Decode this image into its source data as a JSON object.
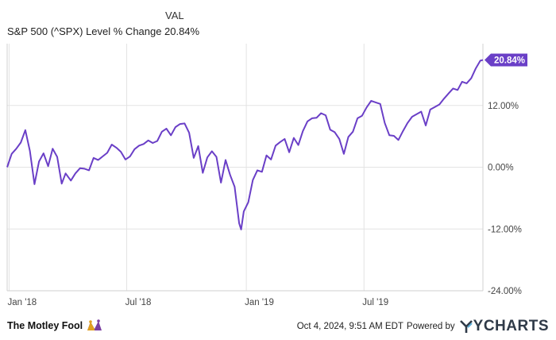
{
  "legend": {
    "column_header": "VAL",
    "series_label": "S&P 500 (^SPX) Level % Change",
    "series_value": "20.84%"
  },
  "footer": {
    "brand": "The Motley Fool",
    "timestamp": "Oct 4, 2024, 9:51 AM EDT",
    "powered_by": "Powered by",
    "provider": "YCHARTS"
  },
  "colors": {
    "line": "#6a3fc7",
    "grid": "#e3e3e3",
    "badge": "#6a3fc7"
  },
  "icons": {
    "brand_logo": "jester-hat-icon",
    "provider_logo": "ycharts-y-icon"
  },
  "chart_data": {
    "type": "line",
    "title": "",
    "xlabel": "",
    "ylabel": "",
    "x_ticks": [
      "Jan '18",
      "Jul '18",
      "Jan '19",
      "Jul '19"
    ],
    "y_ticks": [
      "12.00%",
      "0.00%",
      "-12.00%",
      "-24.00%"
    ],
    "y_tick_values": [
      12,
      0,
      -12,
      -24
    ],
    "ylim": [
      -24,
      24
    ],
    "xlim": [
      "2017-12-29",
      "2019-12-31"
    ],
    "grid": true,
    "last_value_label": "20.84%",
    "series": [
      {
        "x": [
          "2017-12-29",
          "2018-01-05",
          "2018-01-12",
          "2018-01-19",
          "2018-01-26",
          "2018-02-02",
          "2018-02-09",
          "2018-02-16",
          "2018-02-23",
          "2018-03-02",
          "2018-03-09",
          "2018-03-16",
          "2018-03-23",
          "2018-03-29",
          "2018-04-06",
          "2018-04-13",
          "2018-04-20",
          "2018-04-27",
          "2018-05-04",
          "2018-05-11",
          "2018-05-18",
          "2018-05-25",
          "2018-06-01",
          "2018-06-08",
          "2018-06-15",
          "2018-06-22",
          "2018-06-29",
          "2018-07-06",
          "2018-07-13",
          "2018-07-20",
          "2018-07-27",
          "2018-08-03",
          "2018-08-10",
          "2018-08-17",
          "2018-08-24",
          "2018-08-31",
          "2018-09-07",
          "2018-09-14",
          "2018-09-21",
          "2018-09-28",
          "2018-10-05",
          "2018-10-12",
          "2018-10-19",
          "2018-10-26",
          "2018-11-02",
          "2018-11-09",
          "2018-11-16",
          "2018-11-23",
          "2018-11-30",
          "2018-12-07",
          "2018-12-14",
          "2018-12-21",
          "2018-12-24",
          "2018-12-28",
          "2019-01-04",
          "2019-01-11",
          "2019-01-18",
          "2019-01-25",
          "2019-02-01",
          "2019-02-08",
          "2019-02-15",
          "2019-02-22",
          "2019-03-01",
          "2019-03-08",
          "2019-03-15",
          "2019-03-22",
          "2019-03-29",
          "2019-04-05",
          "2019-04-12",
          "2019-04-19",
          "2019-04-26",
          "2019-05-03",
          "2019-05-10",
          "2019-05-17",
          "2019-05-24",
          "2019-05-31",
          "2019-06-07",
          "2019-06-14",
          "2019-06-21",
          "2019-06-28",
          "2019-07-05",
          "2019-07-12",
          "2019-07-19",
          "2019-07-26",
          "2019-08-02",
          "2019-08-09",
          "2019-08-16",
          "2019-08-23",
          "2019-08-30",
          "2019-09-06",
          "2019-09-13",
          "2019-09-20",
          "2019-09-27",
          "2019-10-04",
          "2019-10-11",
          "2019-10-18",
          "2019-10-25",
          "2019-11-01",
          "2019-11-08",
          "2019-11-15",
          "2019-11-22",
          "2019-11-29",
          "2019-12-06",
          "2019-12-13",
          "2019-12-20",
          "2019-12-27",
          "2019-12-31"
        ],
        "y": [
          0.0,
          2.6,
          3.6,
          4.8,
          7.2,
          3.2,
          -3.3,
          1.1,
          2.7,
          0.2,
          3.6,
          2.0,
          -3.2,
          -1.2,
          -2.6,
          -1.2,
          -0.2,
          -0.3,
          -0.6,
          1.8,
          1.4,
          2.1,
          2.8,
          4.4,
          3.8,
          3.0,
          1.5,
          2.1,
          3.5,
          4.2,
          4.5,
          5.2,
          4.7,
          5.1,
          6.9,
          7.5,
          6.2,
          7.8,
          8.4,
          8.5,
          6.7,
          1.8,
          4.1,
          -1.1,
          1.9,
          3.1,
          2.0,
          -3.0,
          1.4,
          -1.5,
          -3.8,
          -10.9,
          -12.1,
          -8.6,
          -6.8,
          -2.5,
          -0.6,
          -0.9,
          2.3,
          1.5,
          4.2,
          4.9,
          5.5,
          2.9,
          5.7,
          4.3,
          7.0,
          8.9,
          9.5,
          9.6,
          10.5,
          10.1,
          7.3,
          6.8,
          5.5,
          2.6,
          5.9,
          6.9,
          9.5,
          10.0,
          11.6,
          12.9,
          12.6,
          12.3,
          8.6,
          6.2,
          6.1,
          5.3,
          7.0,
          8.6,
          9.8,
          10.3,
          10.8,
          8.1,
          11.2,
          11.7,
          12.2,
          13.3,
          14.3,
          15.3,
          15.0,
          16.6,
          16.3,
          17.3,
          19.2,
          20.7,
          20.84
        ]
      }
    ]
  }
}
